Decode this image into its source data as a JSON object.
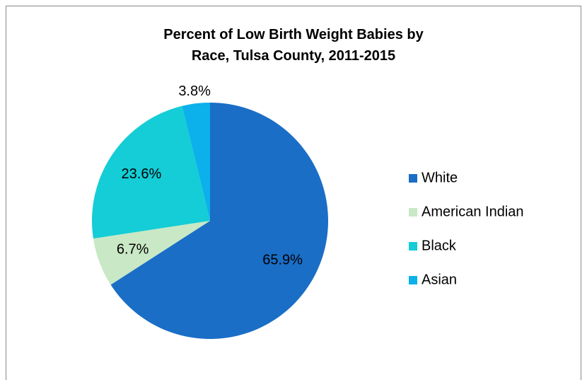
{
  "chart_data": {
    "type": "pie",
    "title": "Percent of Low Birth Weight Babies by Race, Tulsa County, 2011-2015",
    "categories": [
      "White",
      "American Indian",
      "Black",
      "Asian"
    ],
    "values": [
      65.9,
      6.7,
      23.6,
      3.8
    ],
    "value_labels": [
      "65.9%",
      "6.7%",
      "23.6%",
      "3.8%"
    ],
    "colors": [
      "#1a6ec6",
      "#c9e8c5",
      "#14cdd6",
      "#0cb0ea"
    ],
    "legend": "right"
  }
}
